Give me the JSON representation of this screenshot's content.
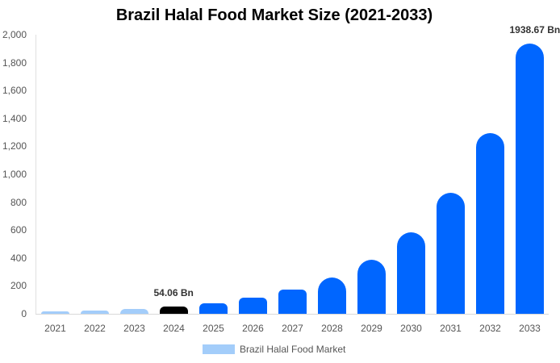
{
  "chart_data": {
    "type": "bar",
    "title": "Brazil Halal Food Market Size (2021-2033)",
    "xlabel": "",
    "ylabel": "",
    "ylim": [
      0,
      2000
    ],
    "yticks": [
      "0",
      "200",
      "400",
      "600",
      "800",
      "1,000",
      "1,200",
      "1,400",
      "1,600",
      "1,800",
      "2,000"
    ],
    "categories": [
      "2021",
      "2022",
      "2023",
      "2024",
      "2025",
      "2026",
      "2027",
      "2028",
      "2029",
      "2030",
      "2031",
      "2032",
      "2033"
    ],
    "series": [
      {
        "name": "Brazil Halal Food Market",
        "values": [
          17,
          23,
          35,
          54.06,
          75,
          115,
          173,
          260,
          387,
          584,
          867,
          1295,
          1938.67
        ]
      }
    ],
    "annotations": [
      {
        "category": "2024",
        "text": "54.06 Bn"
      },
      {
        "category": "2033",
        "text": "1938.67 Bn"
      }
    ],
    "colors": {
      "historical": "#a3cdfa",
      "current": "#000000",
      "forecast": "#0066ff"
    },
    "legend": {
      "position": "bottom",
      "label": "Brazil Halal Food Market",
      "swatch_color": "#a3cdfa"
    },
    "grid": false
  }
}
